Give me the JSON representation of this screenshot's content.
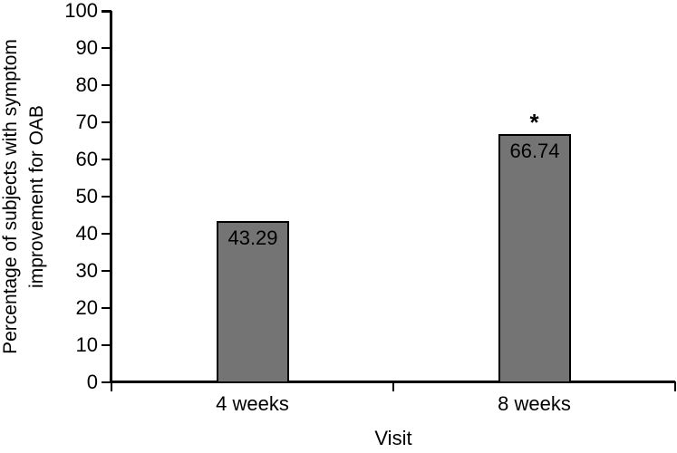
{
  "figure": {
    "background_color": "#ffffff",
    "axis_color": "#000000",
    "bar_fill_color": "#747474",
    "bar_border_color": "#000000",
    "text_color": "#000000"
  },
  "chart_data": {
    "type": "bar",
    "categories": [
      "4 weeks",
      "8 weeks"
    ],
    "values": [
      43.29,
      66.74
    ],
    "bar_labels": [
      "43.29",
      "66.74"
    ],
    "annotations": [
      {
        "category_index": 1,
        "text": "*",
        "position": "above-bar"
      }
    ],
    "title": "",
    "xlabel": "Visit",
    "ylabel": "Percentage of subjects with symptom\nimprovement for OAB",
    "ylim": [
      0,
      100
    ],
    "ytick_step": 10,
    "ytick_labels": [
      "0",
      "10",
      "20",
      "30",
      "40",
      "50",
      "60",
      "70",
      "80",
      "90",
      "100"
    ],
    "grid": false,
    "legend": null
  }
}
